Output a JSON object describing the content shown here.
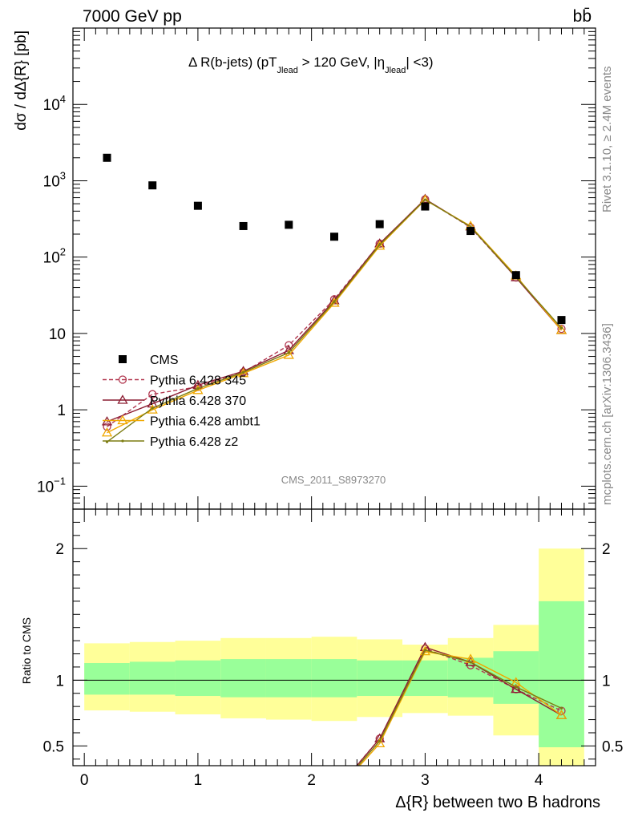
{
  "header": {
    "energy_label": "7000 GeV pp",
    "process_label": "bb̄"
  },
  "side_labels": {
    "rivet": "Rivet 3.1.10, ≥ 2.4M events",
    "mcplots": "mcplots.cern.ch [arXiv:1306.3436]"
  },
  "chart_data": {
    "type": "scatter",
    "title": "Δ R(b-jets) (pT_Jlead > 120 GeV, |η_Jlead| <3)",
    "title_parts": {
      "main": "Δ R(b-jets) (pT",
      "sub1": "Jlead",
      "mid": " >  120 GeV, |η",
      "sub2": "Jlead",
      "end": "| <3)"
    },
    "ylabel": "dσ / dΔ{R} [pb]",
    "xlabel": "Δ{R} between two B hadrons",
    "ratio_ylabel": "Ratio to CMS",
    "watermark": "CMS_2011_S8973270",
    "x_range": [
      -0.1,
      4.5
    ],
    "y_range_log": [
      0.05,
      100000
    ],
    "ratio_range": [
      0.35,
      2.3
    ],
    "x_ticks": [
      0,
      1,
      2,
      3,
      4
    ],
    "y_scale": "log",
    "y_major_ticks": [
      {
        "value": 0.1,
        "label": "10",
        "sup": "−1"
      },
      {
        "value": 1,
        "label": "1",
        "sup": ""
      },
      {
        "value": 10,
        "label": "10",
        "sup": ""
      },
      {
        "value": 100,
        "label": "10",
        "sup": "2"
      },
      {
        "value": 1000,
        "label": "10",
        "sup": "3"
      },
      {
        "value": 10000,
        "label": "10",
        "sup": "4"
      }
    ],
    "ratio_ticks": [
      {
        "value": 0.5,
        "label": "0.5"
      },
      {
        "value": 1,
        "label": "1"
      },
      {
        "value": 2,
        "label": "2"
      }
    ],
    "bins": [
      {
        "x": 0.2,
        "lo": 0.0,
        "hi": 0.4
      },
      {
        "x": 0.6,
        "lo": 0.4,
        "hi": 0.8
      },
      {
        "x": 1.0,
        "lo": 0.8,
        "hi": 1.2
      },
      {
        "x": 1.4,
        "lo": 1.2,
        "hi": 1.6
      },
      {
        "x": 1.8,
        "lo": 1.6,
        "hi": 2.0
      },
      {
        "x": 2.2,
        "lo": 2.0,
        "hi": 2.4
      },
      {
        "x": 2.6,
        "lo": 2.4,
        "hi": 2.8
      },
      {
        "x": 3.0,
        "lo": 2.8,
        "hi": 3.2
      },
      {
        "x": 3.4,
        "lo": 3.2,
        "hi": 3.6
      },
      {
        "x": 3.8,
        "lo": 3.6,
        "hi": 4.0
      },
      {
        "x": 4.2,
        "lo": 4.0,
        "hi": 4.4
      }
    ],
    "data": {
      "name": "CMS",
      "y": [
        2000,
        870,
        470,
        255,
        265,
        185,
        270,
        460,
        220,
        58,
        15
      ]
    },
    "bands": {
      "green_lo": [
        0.89,
        0.89,
        0.88,
        0.87,
        0.87,
        0.87,
        0.88,
        0.88,
        0.87,
        0.82,
        0.49
      ],
      "green_hi": [
        1.13,
        1.14,
        1.15,
        1.16,
        1.16,
        1.16,
        1.15,
        1.15,
        1.17,
        1.22,
        1.6
      ],
      "yellow_lo": [
        0.77,
        0.76,
        0.74,
        0.71,
        0.7,
        0.69,
        0.72,
        0.75,
        0.73,
        0.58,
        0.33
      ],
      "yellow_hi": [
        1.28,
        1.29,
        1.3,
        1.32,
        1.32,
        1.33,
        1.31,
        1.27,
        1.32,
        1.42,
        2.0
      ]
    },
    "series": [
      {
        "name": "Pythia 6.428 345",
        "color": "#b23850",
        "marker": "circle",
        "dash": "5,3",
        "y": [
          0.6,
          1.6,
          2.0,
          3.1,
          7.0,
          28,
          150,
          570,
          245,
          54,
          11.5
        ]
      },
      {
        "name": "Pythia 6.428 370",
        "color": "#8c1d32",
        "marker": "triangle",
        "dash": "",
        "y": [
          0.7,
          1.2,
          2.1,
          3.2,
          6.0,
          27,
          150,
          575,
          250,
          54,
          11
        ]
      },
      {
        "name": "Pythia 6.428 ambt1",
        "color": "#f0a800",
        "marker": "triangle",
        "dash": "",
        "y": [
          0.5,
          1.0,
          1.8,
          3.0,
          5.2,
          25,
          140,
          560,
          255,
          57,
          11
        ]
      },
      {
        "name": "Pythia 6.428 z2",
        "color": "#7d7d12",
        "marker": "dot",
        "dash": "",
        "y": [
          0.38,
          1.05,
          1.9,
          3.1,
          5.6,
          26,
          145,
          565,
          250,
          55,
          11.8
        ]
      }
    ]
  }
}
